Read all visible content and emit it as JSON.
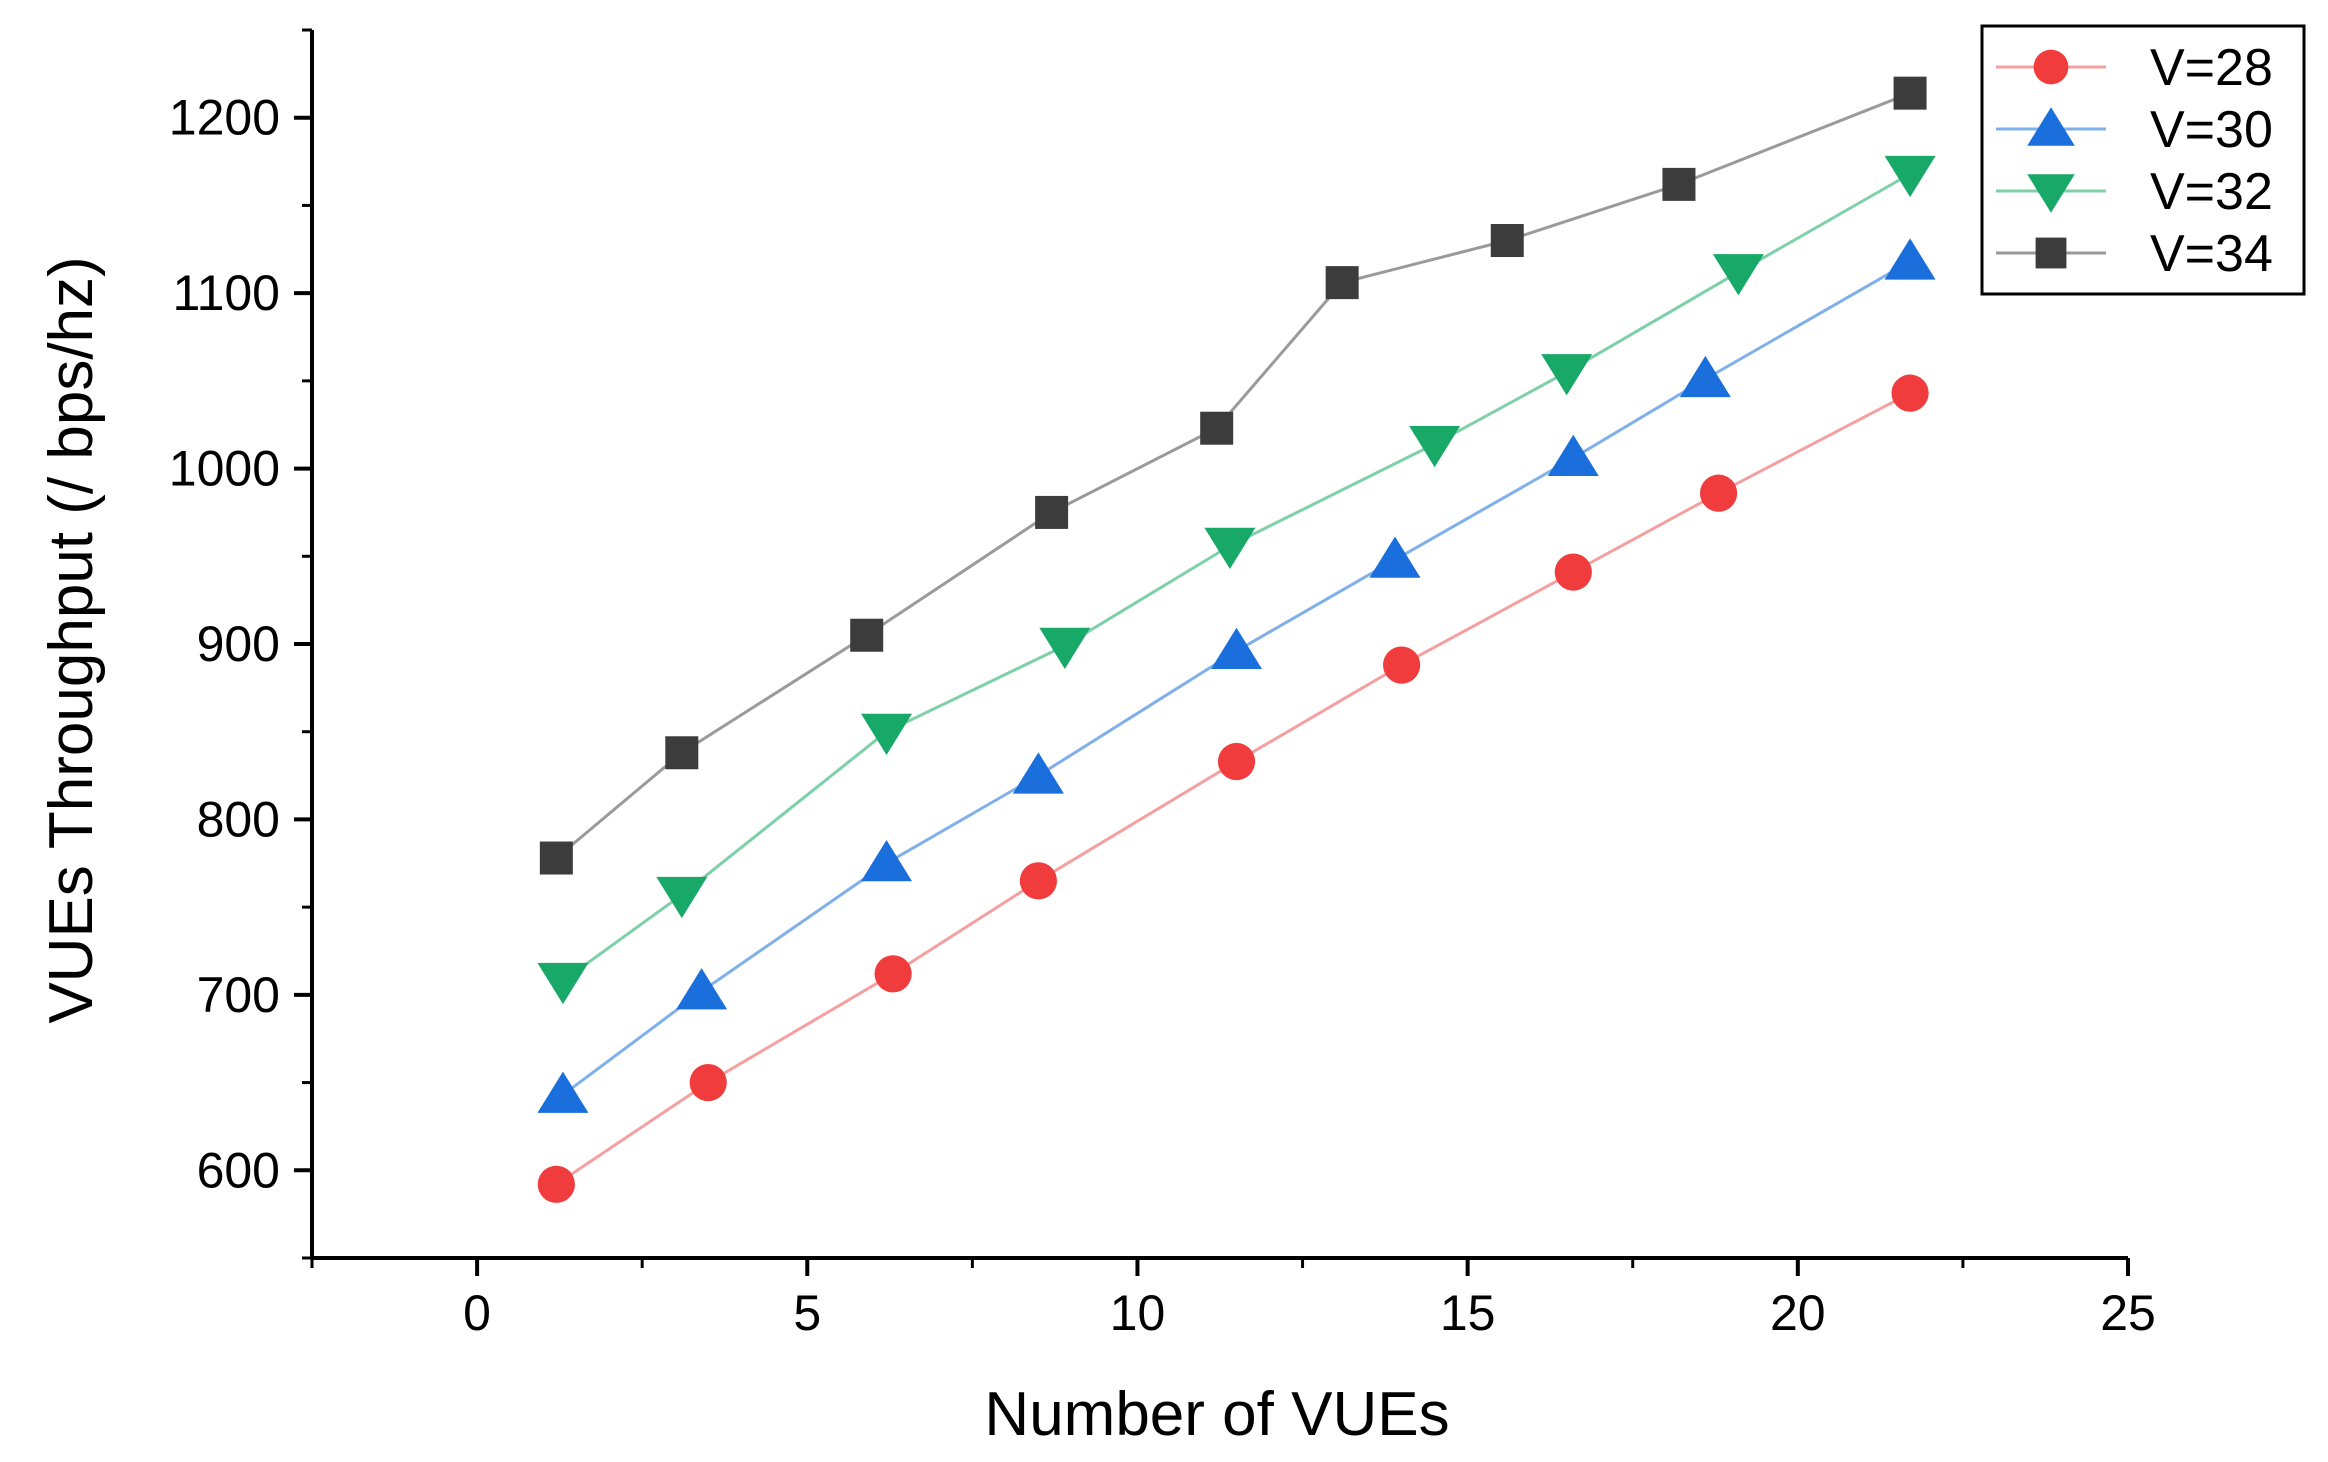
{
  "chart_data": {
    "type": "line",
    "title": "",
    "xlabel": "Number of VUEs",
    "ylabel": "VUEs Throughput (/ bps/hz)",
    "xlim": [
      -2.5,
      25
    ],
    "ylim": [
      550,
      1250
    ],
    "x_ticks": [
      0,
      5,
      10,
      15,
      20,
      25
    ],
    "y_ticks": [
      600,
      700,
      800,
      900,
      1000,
      1100,
      1200
    ],
    "grid": false,
    "legend_position": "top-right",
    "series": [
      {
        "name": "V=28",
        "marker": "circle",
        "color": "#f03c3c",
        "line_color": "#f5a0a0",
        "x": [
          1.2,
          3.5,
          6.3,
          8.5,
          11.5,
          14.0,
          16.6,
          18.8,
          21.7
        ],
        "y": [
          592,
          650,
          712,
          765,
          833,
          888,
          941,
          986,
          1043
        ]
      },
      {
        "name": "V=30",
        "marker": "triangle-up",
        "color": "#1a6fdc",
        "line_color": "#80b0ea",
        "x": [
          1.3,
          3.4,
          6.2,
          8.5,
          11.5,
          13.9,
          16.6,
          18.6,
          21.7
        ],
        "y": [
          643,
          702,
          775,
          825,
          896,
          948,
          1006,
          1051,
          1118
        ]
      },
      {
        "name": "V=32",
        "marker": "triangle-down",
        "color": "#18a867",
        "line_color": "#7ed0a8",
        "x": [
          1.3,
          3.1,
          6.2,
          8.9,
          11.4,
          14.5,
          16.5,
          19.1,
          21.7
        ],
        "y": [
          708,
          757,
          850,
          899,
          956,
          1014,
          1055,
          1112,
          1168
        ]
      },
      {
        "name": "V=34",
        "marker": "square",
        "color": "#3c3c3c",
        "line_color": "#9a9a9a",
        "x": [
          1.2,
          3.1,
          5.9,
          8.7,
          11.2,
          13.1,
          15.6,
          18.2,
          21.7
        ],
        "y": [
          778,
          838,
          905,
          975,
          1023,
          1106,
          1130,
          1162,
          1214
        ]
      }
    ]
  }
}
